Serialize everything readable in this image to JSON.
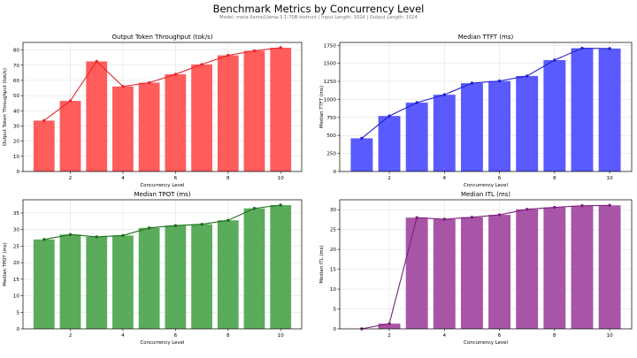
{
  "figure": {
    "title": "Benchmark Metrics by Concurrency Level",
    "subtitle": "Model: meta-llama/Llama-3.1-70B-Instruct | Input Length: 1024 | Output Length: 1024"
  },
  "chart_data": [
    {
      "type": "bar",
      "title": "Output Token Throughput (tok/s)",
      "xlabel": "Concurrency Level",
      "ylabel": "Output Token Throughput (tok/s)",
      "bar_color": "#ff5c5c",
      "line_color": "#e8262a",
      "x": [
        1,
        2,
        3,
        4,
        5,
        6,
        7,
        8,
        9,
        10
      ],
      "values": [
        33.5,
        46.5,
        72.5,
        56,
        58.5,
        64,
        70.5,
        76.5,
        79.5,
        81.5
      ],
      "xlim": [
        0.2,
        10.8
      ],
      "ylim": [
        0,
        85
      ],
      "xticks": [
        2,
        4,
        6,
        8,
        10
      ],
      "yticks": [
        0,
        10,
        20,
        30,
        40,
        50,
        60,
        70,
        80
      ],
      "grid": true
    },
    {
      "type": "bar",
      "title": "Median TTFT (ms)",
      "xlabel": "Concurrency Level",
      "ylabel": "Median TTFT (ms)",
      "bar_color": "#5a5aff",
      "line_color": "#2222cc",
      "x": [
        1,
        2,
        3,
        4,
        5,
        6,
        7,
        8,
        9,
        10
      ],
      "values": [
        460,
        770,
        955,
        1065,
        1225,
        1255,
        1325,
        1545,
        1710,
        1705
      ],
      "xlim": [
        0.2,
        10.8
      ],
      "ylim": [
        0,
        1790
      ],
      "xticks": [
        2,
        4,
        6,
        8,
        10
      ],
      "yticks": [
        0,
        250,
        500,
        750,
        1000,
        1250,
        1500,
        1750
      ],
      "grid": true
    },
    {
      "type": "bar",
      "title": "Median TPOT (ms)",
      "xlabel": "Concurrency Level",
      "ylabel": "Median TPOT (ms)",
      "bar_color": "#5aac5a",
      "line_color": "#1e6e1e",
      "x": [
        1,
        2,
        3,
        4,
        5,
        6,
        7,
        8,
        9,
        10
      ],
      "values": [
        27,
        28.5,
        27.8,
        28.2,
        30.5,
        31.2,
        31.6,
        32.8,
        36.4,
        37.4
      ],
      "xlim": [
        0.2,
        10.8
      ],
      "ylim": [
        0,
        39
      ],
      "xticks": [
        2,
        4,
        6,
        8,
        10
      ],
      "yticks": [
        0,
        5,
        10,
        15,
        20,
        25,
        30,
        35
      ],
      "grid": true
    },
    {
      "type": "bar",
      "title": "Median ITL (ms)",
      "xlabel": "Concurrency Level",
      "ylabel": "Median ITL (ms)",
      "bar_color": "#a855a8",
      "line_color": "#7a1f7a",
      "x": [
        1,
        2,
        3,
        4,
        5,
        6,
        7,
        8,
        9,
        10
      ],
      "values": [
        0,
        1.3,
        28,
        27.6,
        28.1,
        28.7,
        30.1,
        30.6,
        31,
        31.1
      ],
      "xlim": [
        0.2,
        10.8
      ],
      "ylim": [
        0,
        32.5
      ],
      "xticks": [
        2,
        4,
        6,
        8,
        10
      ],
      "yticks": [
        0,
        5,
        10,
        15,
        20,
        25,
        30
      ],
      "grid": true
    }
  ]
}
